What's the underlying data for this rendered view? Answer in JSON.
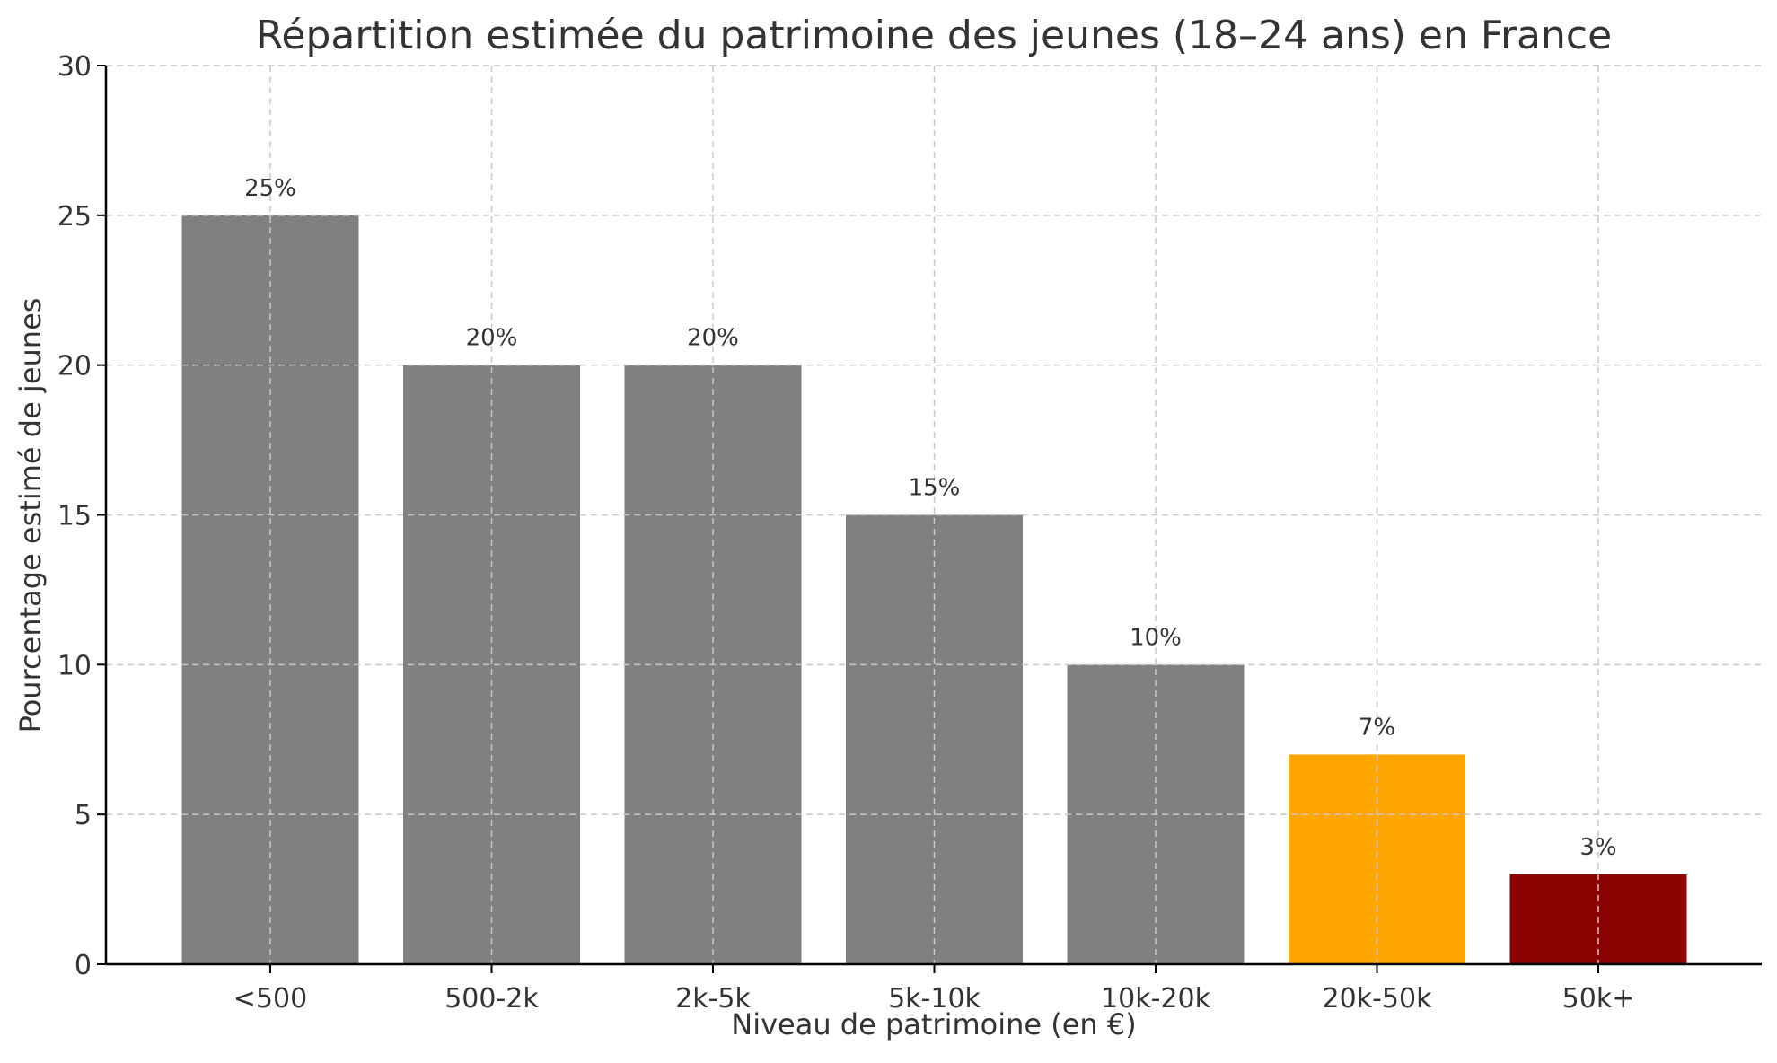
{
  "chart_data": {
    "type": "bar",
    "title": "Répartition estimée du patrimoine des jeunes (18–24 ans) en France",
    "xlabel": "Niveau de patrimoine (en €)",
    "ylabel": "Pourcentage estimé de jeunes",
    "categories": [
      "<500",
      "500-2k",
      "2k-5k",
      "5k-10k",
      "10k-20k",
      "20k-50k",
      "50k+"
    ],
    "values": [
      25,
      20,
      20,
      15,
      10,
      7,
      3
    ],
    "data_labels": [
      "25%",
      "20%",
      "20%",
      "15%",
      "10%",
      "7%",
      "3%"
    ],
    "bar_colors": [
      "#808080",
      "#808080",
      "#808080",
      "#808080",
      "#808080",
      "#FFA500",
      "#8B0000"
    ],
    "ylim": [
      0,
      30
    ],
    "yticks": [
      0,
      5,
      10,
      15,
      20,
      25,
      30
    ],
    "ytick_labels": [
      "0",
      "5",
      "10",
      "15",
      "20",
      "25",
      "30"
    ],
    "grid": true
  }
}
